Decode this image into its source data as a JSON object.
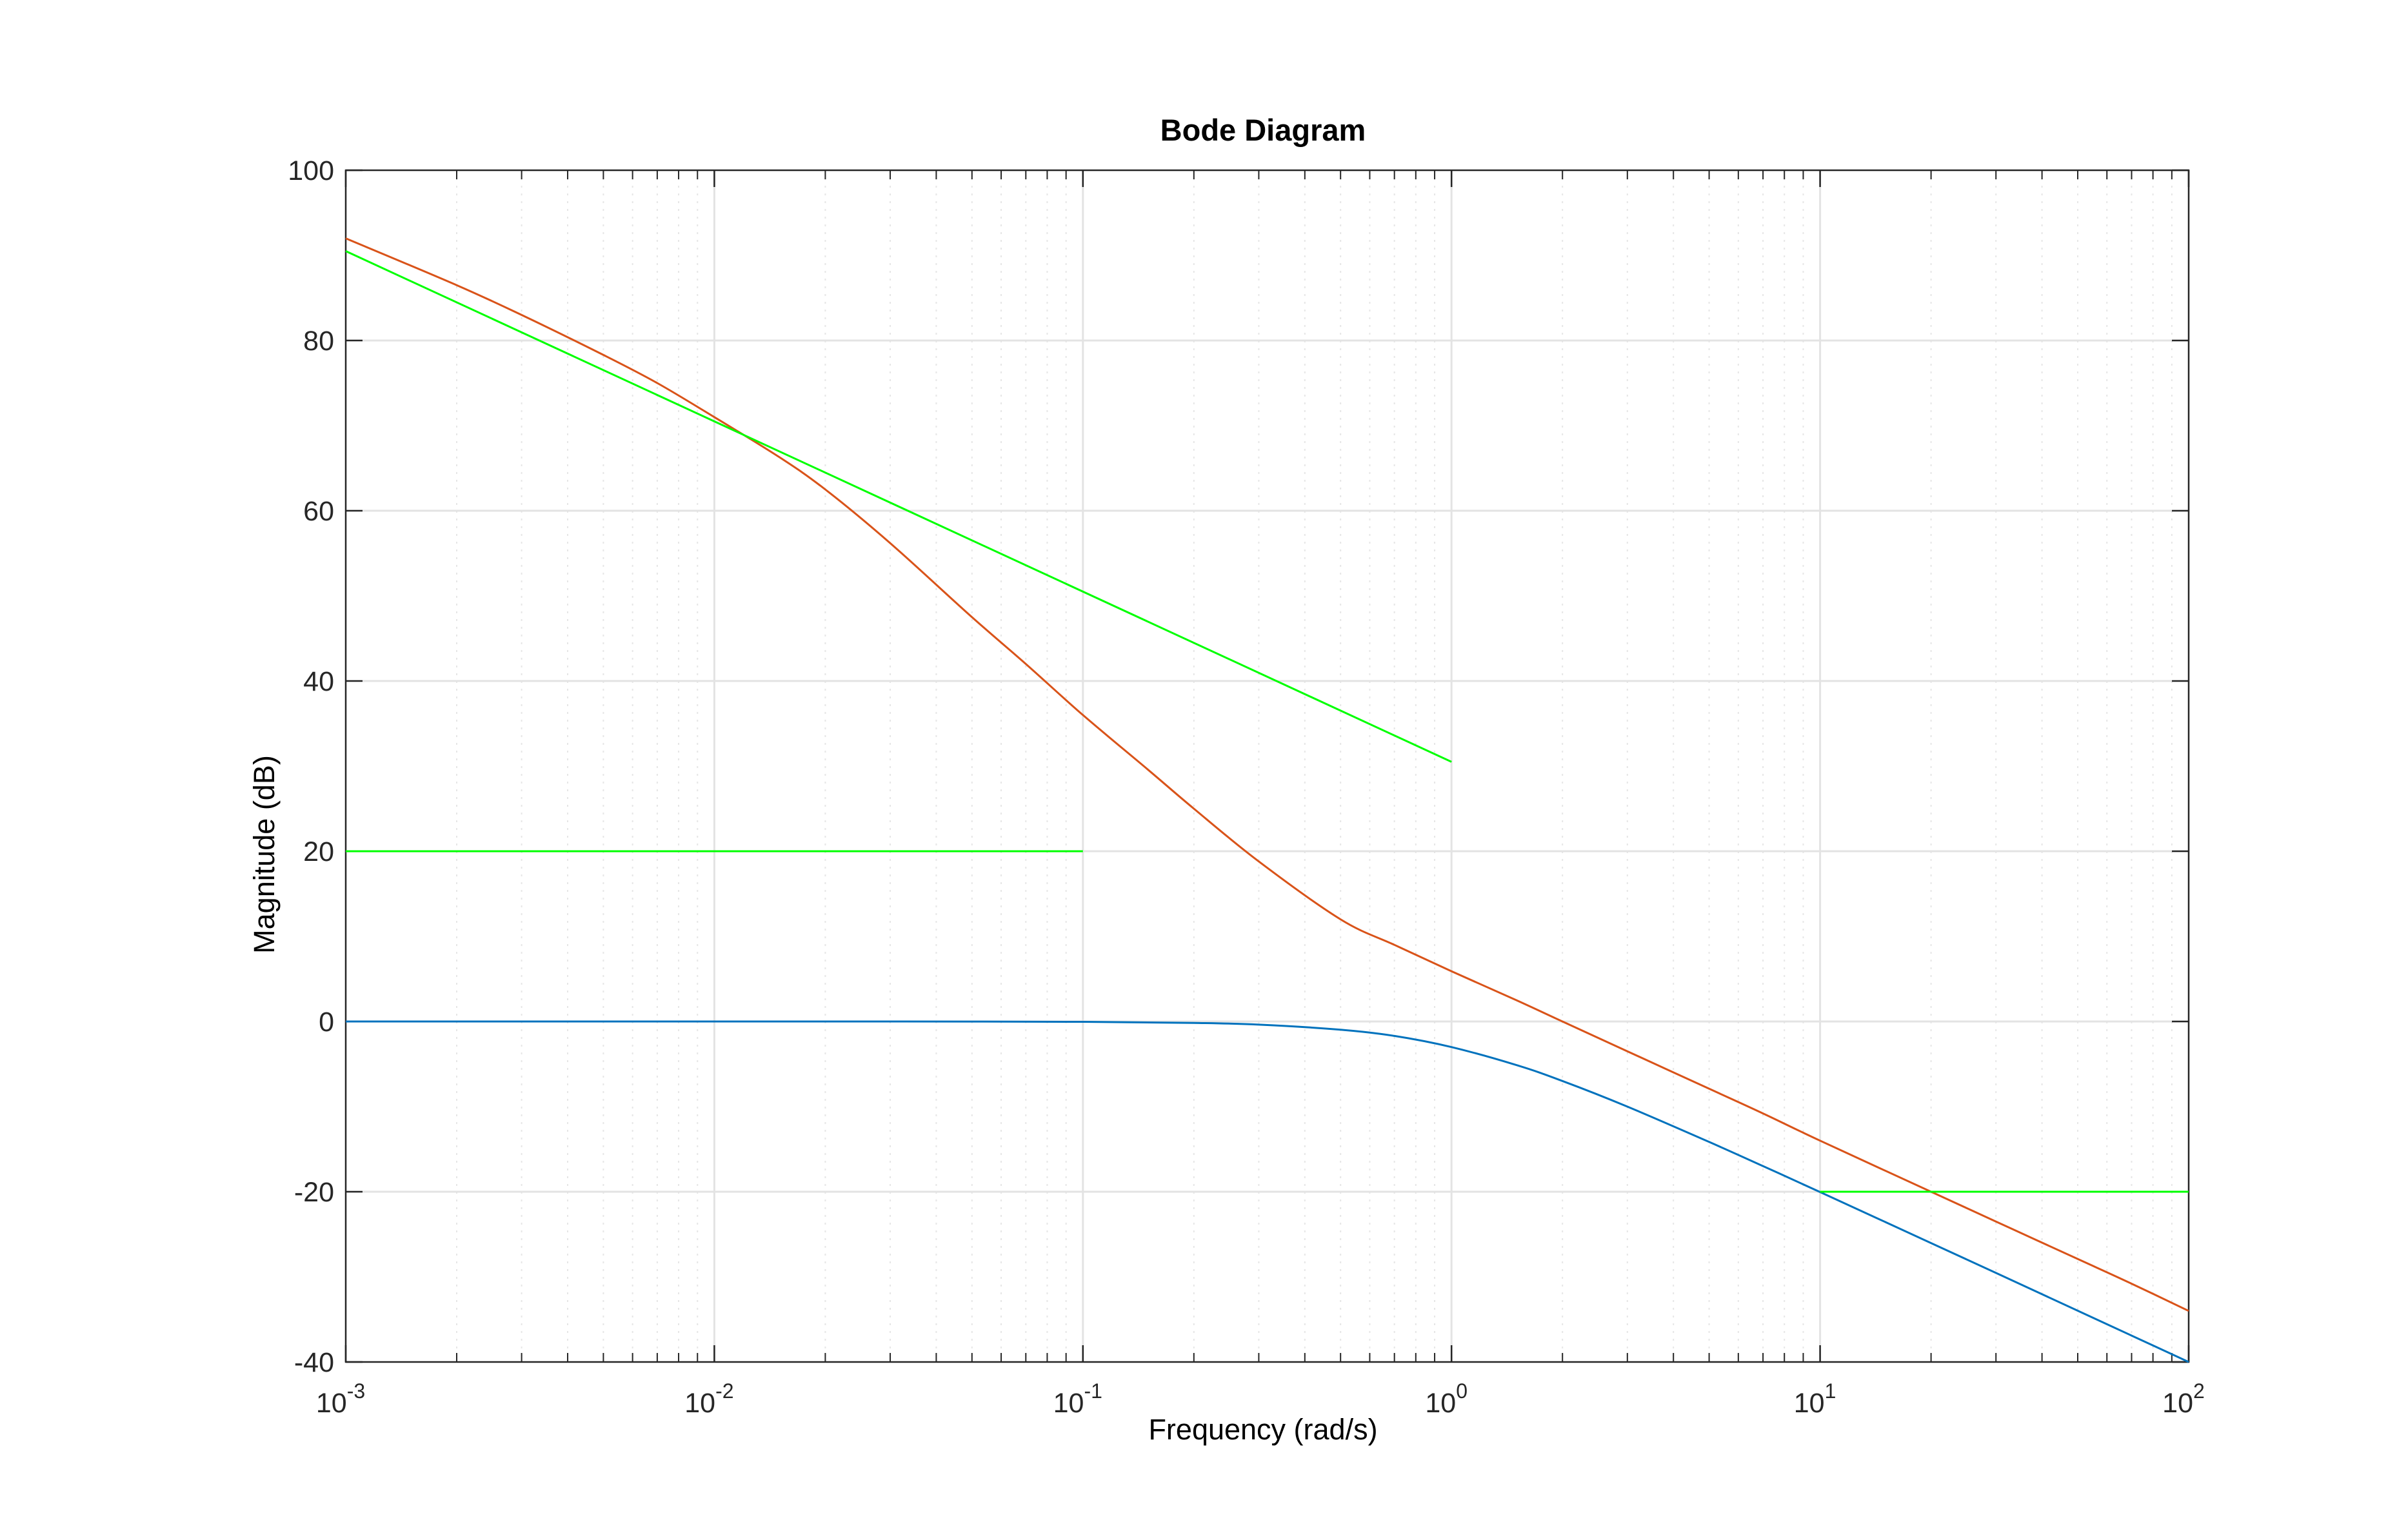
{
  "chart_data": {
    "type": "line",
    "title": "Bode Diagram",
    "xlabel": "Frequency  (rad/s)",
    "ylabel": "Magnitude (dB)",
    "xscale": "log",
    "xlim": [
      0.001,
      100
    ],
    "ylim": [
      -40,
      100
    ],
    "grid": true,
    "x_ticks": [
      {
        "base": "10",
        "exp": "-3"
      },
      {
        "base": "10",
        "exp": "-2"
      },
      {
        "base": "10",
        "exp": "-1"
      },
      {
        "base": "10",
        "exp": "0"
      },
      {
        "base": "10",
        "exp": "1"
      },
      {
        "base": "10",
        "exp": "2"
      }
    ],
    "y_ticks": [
      "-40",
      "-20",
      "0",
      "20",
      "40",
      "60",
      "80",
      "100"
    ],
    "series": [
      {
        "name": "blue-response",
        "color": "#0072bd",
        "x": [
          0.001,
          0.003,
          0.01,
          0.03,
          0.1,
          0.2,
          0.3,
          0.5,
          0.7,
          1,
          1.5,
          2,
          3,
          5,
          7,
          10,
          20,
          30,
          50,
          70,
          100
        ],
        "values": [
          0,
          0,
          0,
          0,
          -0.04,
          -0.17,
          -0.37,
          -0.97,
          -1.7,
          -3.01,
          -5.12,
          -6.99,
          -10,
          -14.15,
          -16.99,
          -20.04,
          -26.03,
          -29.54,
          -33.98,
          -36.9,
          -40
        ]
      },
      {
        "name": "orange-response",
        "color": "#d95319",
        "x": [
          0.001,
          0.002,
          0.003,
          0.005,
          0.007,
          0.01,
          0.015,
          0.02,
          0.03,
          0.05,
          0.07,
          0.1,
          0.15,
          0.2,
          0.3,
          0.5,
          0.7,
          1,
          1.5,
          2,
          3,
          5,
          7,
          10,
          20,
          30,
          50,
          70,
          100
        ],
        "values": [
          92,
          86.5,
          83,
          78.3,
          75,
          71,
          66.3,
          62.5,
          56.2,
          47.5,
          42,
          36,
          29.6,
          25,
          18.8,
          12,
          9,
          5.9,
          2.5,
          0,
          -3.5,
          -7.9,
          -10.8,
          -14,
          -20,
          -23.5,
          -27.9,
          -30.8,
          -34
        ]
      },
      {
        "name": "green-asymptote-low-sloped",
        "color": "#00ff00",
        "x": [
          0.001,
          1
        ],
        "values": [
          90.5,
          30.5
        ]
      },
      {
        "name": "green-asymptote-flat-20",
        "color": "#00ff00",
        "x": [
          0.001,
          0.1
        ],
        "values": [
          20,
          20
        ]
      },
      {
        "name": "green-asymptote-flat-minus20",
        "color": "#00ff00",
        "x": [
          10,
          100
        ],
        "values": [
          -20,
          -20
        ]
      }
    ]
  }
}
